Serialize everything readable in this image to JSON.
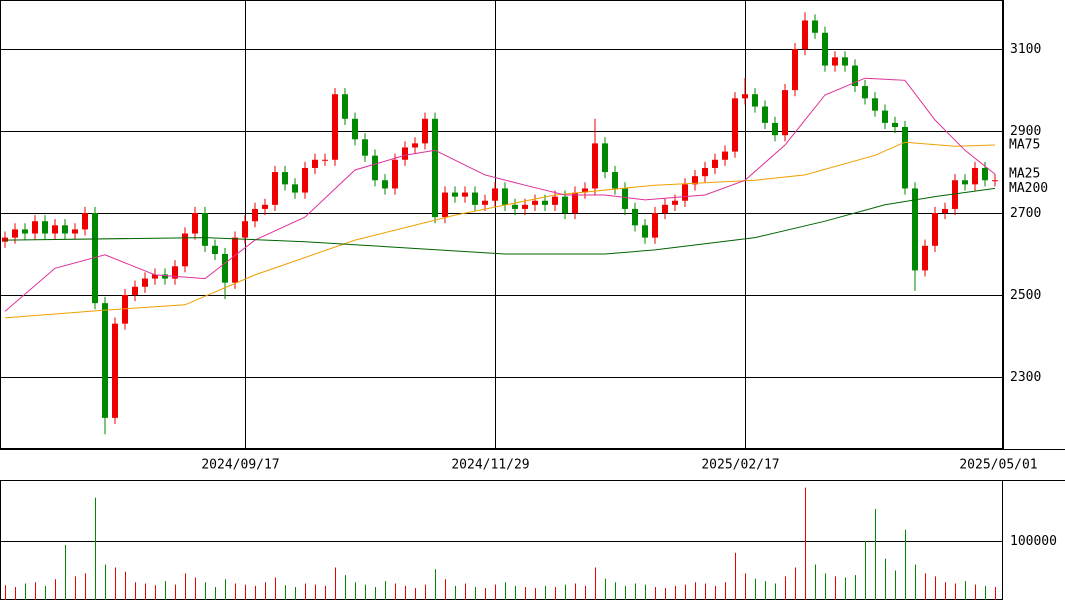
{
  "chart_data": [
    {
      "type": "candlestick",
      "up_color": "#ee0000",
      "down_color": "#008800",
      "xlim": [
        -0.5,
        99.8
      ],
      "xticks": [
        {
          "value": 24,
          "label": "2024/09/17"
        },
        {
          "value": 49,
          "label": "2024/11/29"
        },
        {
          "value": 74,
          "label": "2025/02/17"
        },
        {
          "value": 99.8,
          "label": "2025/05/01"
        }
      ],
      "ylim": [
        2124,
        3220
      ],
      "yticks": [
        2300,
        2500,
        2700,
        2900,
        3100
      ],
      "grid": true,
      "open": [
        2630,
        2640,
        2660,
        2650,
        2680,
        2650,
        2670,
        2650,
        2660,
        2700,
        2480,
        2200,
        2430,
        2500,
        2520,
        2540,
        2550,
        2540,
        2570,
        2650,
        2700,
        2620,
        2600,
        2530,
        2640,
        2680,
        2710,
        2720,
        2800,
        2770,
        2750,
        2810,
        2830,
        2830,
        2990,
        2930,
        2880,
        2840,
        2780,
        2760,
        2830,
        2860,
        2870,
        2930,
        2690,
        2750,
        2740,
        2750,
        2720,
        2730,
        2760,
        2720,
        2710,
        2720,
        2730,
        2720,
        2740,
        2700,
        2750,
        2760,
        2870,
        2800,
        2760,
        2710,
        2670,
        2640,
        2700,
        2720,
        2730,
        2770,
        2790,
        2810,
        2830,
        2850,
        2980,
        2990,
        2960,
        2920,
        2890,
        3000,
        3100,
        3170,
        3140,
        3060,
        3080,
        3060,
        3010,
        2980,
        2950,
        2920,
        2910,
        2760,
        2560,
        2620,
        2700,
        2710,
        2780,
        2770,
        2810,
        2780
      ],
      "high": [
        2655,
        2675,
        2675,
        2695,
        2695,
        2685,
        2685,
        2675,
        2715,
        2715,
        2495,
        2445,
        2515,
        2535,
        2555,
        2565,
        2565,
        2585,
        2665,
        2715,
        2715,
        2635,
        2615,
        2655,
        2695,
        2725,
        2735,
        2815,
        2815,
        2785,
        2825,
        2845,
        2845,
        3005,
        3005,
        2945,
        2895,
        2855,
        2795,
        2845,
        2875,
        2885,
        2945,
        2945,
        2765,
        2765,
        2765,
        2765,
        2745,
        2775,
        2775,
        2735,
        2735,
        2745,
        2745,
        2755,
        2755,
        2765,
        2775,
        2930,
        2885,
        2815,
        2775,
        2725,
        2685,
        2715,
        2735,
        2745,
        2785,
        2805,
        2825,
        2845,
        2865,
        2995,
        3030,
        3005,
        2975,
        2935,
        3015,
        3115,
        3190,
        3185,
        3155,
        3095,
        3095,
        3075,
        3025,
        2995,
        2965,
        2935,
        2925,
        2775,
        2635,
        2715,
        2725,
        2795,
        2795,
        2825,
        2825,
        2795
      ],
      "low": [
        2615,
        2625,
        2635,
        2635,
        2635,
        2635,
        2635,
        2635,
        2645,
        2465,
        2160,
        2185,
        2415,
        2485,
        2505,
        2525,
        2525,
        2525,
        2555,
        2635,
        2605,
        2585,
        2490,
        2515,
        2625,
        2665,
        2695,
        2705,
        2755,
        2735,
        2735,
        2795,
        2815,
        2815,
        2915,
        2865,
        2825,
        2765,
        2745,
        2745,
        2815,
        2845,
        2855,
        2675,
        2675,
        2725,
        2725,
        2705,
        2705,
        2715,
        2705,
        2695,
        2695,
        2705,
        2705,
        2705,
        2685,
        2685,
        2735,
        2745,
        2785,
        2745,
        2695,
        2655,
        2625,
        2625,
        2685,
        2705,
        2715,
        2755,
        2775,
        2795,
        2815,
        2835,
        2965,
        2945,
        2905,
        2875,
        2875,
        2985,
        3085,
        3125,
        3045,
        3045,
        3045,
        2995,
        2965,
        2935,
        2905,
        2895,
        2745,
        2510,
        2545,
        2605,
        2685,
        2695,
        2755,
        2755,
        2765,
        2765
      ],
      "close": [
        2640,
        2660,
        2650,
        2680,
        2650,
        2670,
        2650,
        2660,
        2700,
        2480,
        2200,
        2430,
        2500,
        2520,
        2540,
        2550,
        2540,
        2570,
        2650,
        2700,
        2620,
        2600,
        2530,
        2640,
        2680,
        2710,
        2720,
        2800,
        2770,
        2750,
        2810,
        2830,
        2830,
        2990,
        2930,
        2880,
        2840,
        2780,
        2760,
        2830,
        2860,
        2870,
        2930,
        2690,
        2750,
        2740,
        2750,
        2720,
        2730,
        2760,
        2720,
        2710,
        2720,
        2730,
        2720,
        2740,
        2700,
        2750,
        2760,
        2870,
        2800,
        2760,
        2710,
        2670,
        2640,
        2700,
        2720,
        2730,
        2770,
        2790,
        2810,
        2830,
        2850,
        2980,
        2990,
        2960,
        2920,
        2890,
        3000,
        3100,
        3170,
        3140,
        3060,
        3080,
        3060,
        3010,
        2980,
        2950,
        2920,
        2910,
        2760,
        2560,
        2620,
        2700,
        2710,
        2780,
        2770,
        2810,
        2780,
        2780
      ],
      "series": [
        {
          "name": "MA75",
          "color": "#f0a000",
          "x": [
            0,
            10,
            18,
            25,
            35,
            45,
            55,
            65,
            75,
            80,
            87,
            90,
            95,
            99
          ],
          "values": [
            2444,
            2463,
            2476,
            2549,
            2634,
            2695,
            2744,
            2768,
            2780,
            2793,
            2841,
            2873,
            2863,
            2866
          ]
        },
        {
          "name": "MA25",
          "color": "#e0309a",
          "x": [
            0,
            5,
            10,
            15,
            20,
            25,
            30,
            35,
            40,
            43,
            48,
            52,
            56,
            60,
            64,
            70,
            74,
            78,
            82,
            86,
            90,
            93,
            96,
            99
          ],
          "values": [
            2460,
            2565,
            2598,
            2549,
            2540,
            2634,
            2690,
            2805,
            2841,
            2853,
            2793,
            2768,
            2744,
            2744,
            2732,
            2744,
            2780,
            2866,
            2988,
            3029,
            3024,
            2927,
            2853,
            2795
          ]
        },
        {
          "name": "MA200",
          "color": "#006400",
          "x": [
            0,
            20,
            30,
            50,
            60,
            65,
            75,
            82,
            88,
            93,
            99
          ],
          "values": [
            2634,
            2640,
            2630,
            2600,
            2600,
            2610,
            2640,
            2680,
            2720,
            2740,
            2760
          ]
        }
      ]
    },
    {
      "type": "bar",
      "xlim": [
        -0.5,
        99.8
      ],
      "ylim": [
        0,
        203000
      ],
      "yticks": [
        100000
      ],
      "grid": true,
      "values": [
        25000,
        22000,
        28000,
        30000,
        24000,
        35000,
        93000,
        40000,
        45000,
        173000,
        60000,
        55000,
        48000,
        30000,
        28000,
        25000,
        32000,
        26000,
        45000,
        38000,
        30000,
        22000,
        35000,
        28000,
        26000,
        24000,
        30000,
        38000,
        25000,
        22000,
        28000,
        26000,
        24000,
        55000,
        42000,
        30000,
        26000,
        22000,
        32000,
        28000,
        24000,
        20000,
        26000,
        52000,
        35000,
        24000,
        28000,
        22000,
        20000,
        26000,
        30000,
        24000,
        22000,
        20000,
        24000,
        22000,
        26000,
        28000,
        24000,
        55000,
        36000,
        30000,
        24000,
        28000,
        26000,
        22000,
        20000,
        24000,
        26000,
        30000,
        28000,
        24000,
        30000,
        80000,
        45000,
        36000,
        32000,
        28000,
        40000,
        55000,
        190000,
        60000,
        45000,
        40000,
        38000,
        42000,
        100000,
        154000,
        70000,
        50000,
        119000,
        60000,
        45000,
        40000,
        30000,
        28000,
        32000,
        26000,
        24000,
        22000
      ]
    }
  ]
}
